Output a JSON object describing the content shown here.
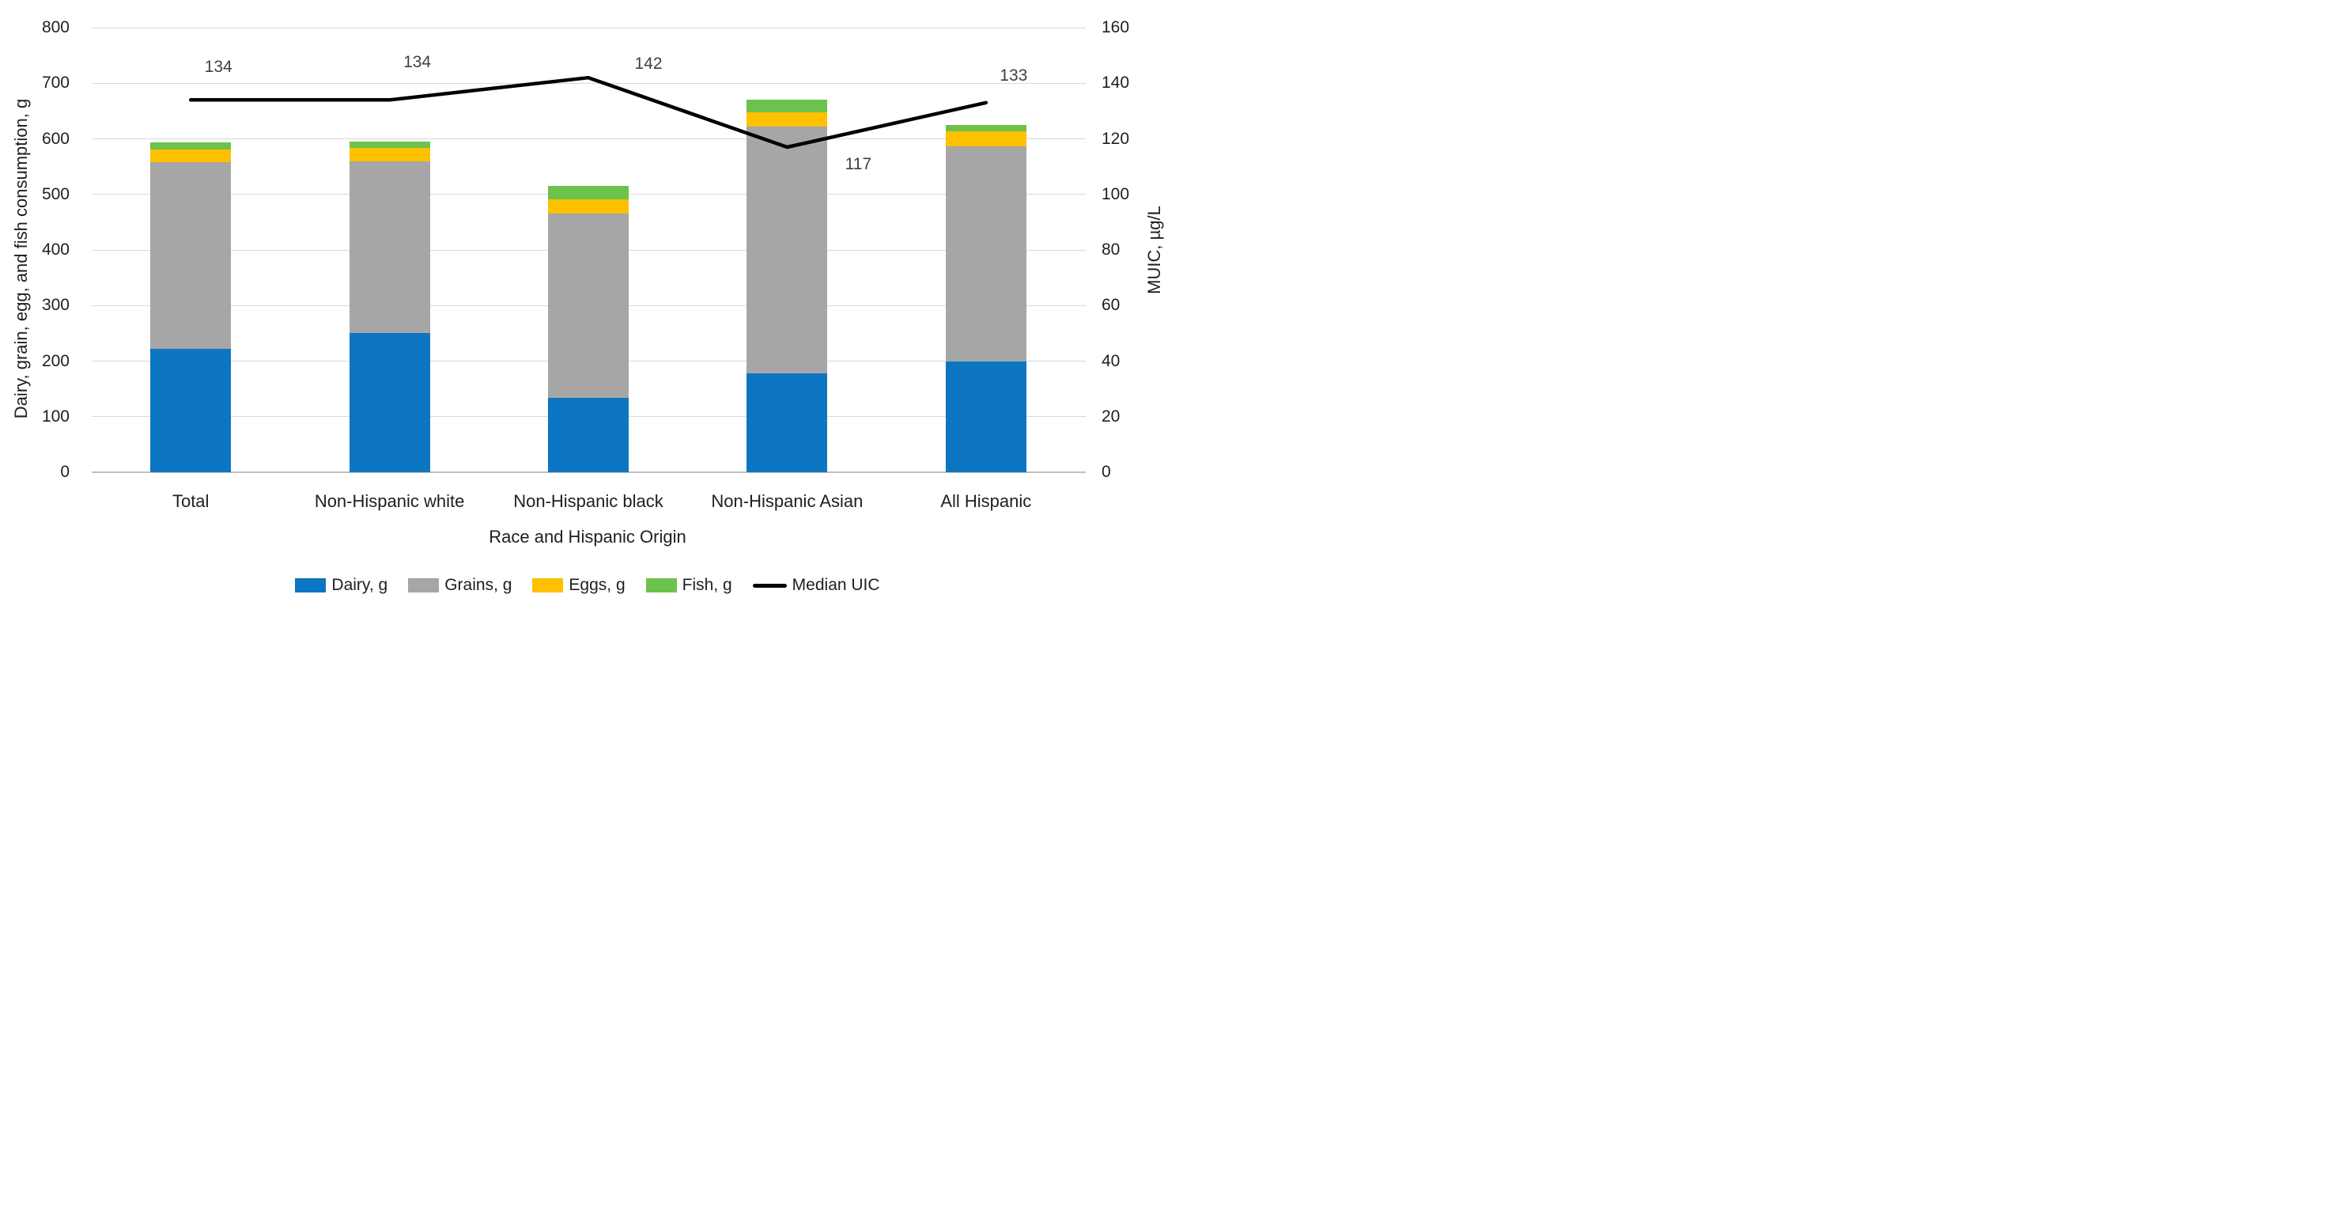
{
  "chart_data": {
    "type": "combo_stacked_bar_line",
    "title": "",
    "categories": [
      "Total",
      "Non-Hispanic white",
      "Non-Hispanic black",
      "Non-Hispanic Asian",
      "All Hispanic"
    ],
    "bar_series": [
      {
        "name": "Dairy, g",
        "color": "#0d76c2",
        "values": [
          222,
          250,
          134,
          178,
          199
        ]
      },
      {
        "name": "Grains, g",
        "color": "#a6a6a6",
        "values": [
          336,
          310,
          332,
          444,
          388
        ]
      },
      {
        "name": "Eggs, g",
        "color": "#ffc000",
        "values": [
          23,
          23,
          25,
          26,
          27
        ]
      },
      {
        "name": "Fish, g",
        "color": "#6cc24b",
        "values": [
          13,
          12,
          24,
          22,
          11
        ]
      }
    ],
    "line_series": {
      "name": "Median UIC",
      "color": "#000000",
      "axis": "right",
      "values": [
        134,
        134,
        142,
        117,
        133
      ],
      "data_labels": [
        "134",
        "134",
        "142",
        "117",
        "133"
      ]
    },
    "left_axis": {
      "title": "Dairy, grain, egg, and fish consumption, g",
      "min": 0,
      "max": 800,
      "step": 100,
      "tick_labels": [
        "0",
        "100",
        "200",
        "300",
        "400",
        "500",
        "600",
        "700",
        "800"
      ]
    },
    "right_axis": {
      "title": "MUIC, µg/L",
      "min": 0,
      "max": 160,
      "step": 20,
      "tick_labels": [
        "0",
        "20",
        "40",
        "60",
        "80",
        "100",
        "120",
        "140",
        "160"
      ]
    },
    "x_axis": {
      "title": "Race and Hispanic Origin"
    },
    "grid": true,
    "legend_position": "bottom",
    "legend": [
      {
        "label": "Dairy, g",
        "marker": "square",
        "color": "#0d76c2"
      },
      {
        "label": "Grains, g",
        "marker": "square",
        "color": "#a6a6a6"
      },
      {
        "label": "Eggs, g",
        "marker": "square",
        "color": "#ffc000"
      },
      {
        "label": "Fish, g",
        "marker": "square",
        "color": "#6cc24b"
      },
      {
        "label": "Median UIC",
        "marker": "line",
        "color": "#000000"
      }
    ]
  },
  "colors": {
    "background": "#ffffff",
    "gridline": "#d9d9d9",
    "axis_line": "#bfbfbf",
    "tick_text": "#1f1f1f",
    "data_label_text": "#404040"
  }
}
